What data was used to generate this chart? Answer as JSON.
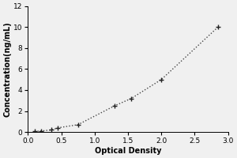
{
  "x": [
    0.1,
    0.2,
    0.35,
    0.45,
    0.75,
    1.3,
    1.55,
    2.0,
    2.85
  ],
  "y": [
    0.05,
    0.1,
    0.2,
    0.4,
    0.7,
    2.5,
    3.2,
    5.0,
    10.0
  ],
  "xlabel": "Optical Density",
  "ylabel": "Concentration(ng/mL)",
  "xlim": [
    0,
    3
  ],
  "ylim": [
    0,
    12
  ],
  "xticks": [
    0,
    0.5,
    1,
    1.5,
    2,
    2.5,
    3
  ],
  "yticks": [
    0,
    2,
    4,
    6,
    8,
    10,
    12
  ],
  "line_color": "#444444",
  "marker_style": "+",
  "marker_color": "#222222",
  "line_style": ":",
  "marker_size": 5,
  "line_width": 1.0,
  "background_color": "#f0f0f0",
  "label_fontsize": 7,
  "tick_fontsize": 6.5
}
